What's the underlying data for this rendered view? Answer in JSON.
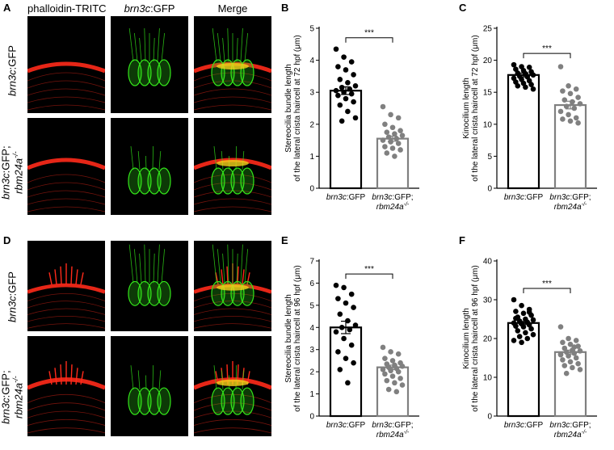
{
  "figure": {
    "columns": [
      {
        "id": "phalloidin",
        "parts": [
          {
            "t": "phalloidin-TRITC",
            "i": false
          }
        ]
      },
      {
        "id": "brn3c",
        "parts": [
          {
            "t": "brn3c",
            "i": true
          },
          {
            "t": ":GFP",
            "i": false
          }
        ]
      },
      {
        "id": "merge",
        "parts": [
          {
            "t": "Merge",
            "i": false
          }
        ]
      }
    ],
    "rows": [
      {
        "letter": "A",
        "label_lines": [
          [
            {
              "t": "brn3c",
              "i": true
            },
            {
              "t": ":GFP",
              "i": false
            }
          ]
        ]
      },
      {
        "letter": "",
        "label_lines": [
          [
            {
              "t": "brn3c",
              "i": true
            },
            {
              "t": ":GFP;",
              "i": false
            }
          ],
          [
            {
              "t": "rbm24a",
              "i": true
            },
            {
              "t": "-/-",
              "i": true,
              "sup": true
            }
          ]
        ]
      },
      {
        "letter": "D",
        "label_lines": [
          [
            {
              "t": "brn3c",
              "i": true
            },
            {
              "t": ":GFP",
              "i": false
            }
          ]
        ]
      },
      {
        "letter": "",
        "label_lines": [
          [
            {
              "t": "brn3c",
              "i": true
            },
            {
              "t": ":GFP;",
              "i": false
            }
          ],
          [
            {
              "t": "rbm24a",
              "i": true
            },
            {
              "t": "-/-",
              "i": true,
              "sup": true
            }
          ]
        ]
      }
    ],
    "colors": {
      "phalloidin": "#ff2a1a",
      "gfp": "#33e61a",
      "merge_overlap": "#f5d21a",
      "wt_bar": "#000000",
      "mutant_bar": "#808080"
    }
  },
  "chart_data": [
    {
      "panel": "B",
      "type": "bar",
      "ylabel_lines": [
        "Stereocilia bundle length",
        "of the lateral crista haircell at 72 hpf (μm)"
      ],
      "ylim": [
        0,
        5
      ],
      "yticks": [
        0,
        1,
        2,
        3,
        4,
        5
      ],
      "significance": "***",
      "categories": [
        [
          [
            {
              "t": "brn3c",
              "i": true
            },
            {
              "t": ":GFP",
              "i": false
            }
          ]
        ],
        [
          [
            {
              "t": "brn3c",
              "i": true
            },
            {
              "t": ":GFP;",
              "i": false
            }
          ],
          [
            {
              "t": "rbm24a",
              "i": true
            },
            {
              "t": "-/-",
              "i": true,
              "sup": true
            }
          ]
        ]
      ],
      "means": [
        3.05,
        1.55
      ],
      "sem": [
        0.12,
        0.08
      ],
      "points": [
        [
          4.35,
          4.1,
          3.95,
          3.8,
          3.7,
          3.55,
          3.4,
          3.3,
          3.2,
          3.15,
          3.1,
          3.05,
          3.0,
          2.95,
          2.9,
          2.8,
          2.7,
          2.6,
          2.4,
          2.2,
          2.1
        ],
        [
          2.55,
          2.3,
          2.2,
          2.0,
          1.9,
          1.8,
          1.75,
          1.7,
          1.65,
          1.6,
          1.55,
          1.5,
          1.45,
          1.4,
          1.3,
          1.25,
          1.2,
          1.1,
          1.0
        ]
      ]
    },
    {
      "panel": "C",
      "type": "bar",
      "ylabel_lines": [
        "Kinocilium length",
        "of the lateral crista haircell at 72 hpf (μm)"
      ],
      "ylim": [
        0,
        25
      ],
      "yticks": [
        0,
        5,
        10,
        15,
        20,
        25
      ],
      "significance": "***",
      "categories": [
        [
          [
            {
              "t": "brn3c",
              "i": true
            },
            {
              "t": ":GFP",
              "i": false
            }
          ]
        ],
        [
          [
            {
              "t": "brn3c",
              "i": true
            },
            {
              "t": ":GFP;",
              "i": false
            }
          ],
          [
            {
              "t": "rbm24a",
              "i": true
            },
            {
              "t": "-/-",
              "i": true,
              "sup": true
            }
          ]
        ]
      ],
      "means": [
        17.7,
        13.0
      ],
      "sem": [
        0.3,
        0.6
      ],
      "points": [
        [
          19.3,
          19.0,
          18.9,
          18.6,
          18.4,
          18.2,
          18.0,
          17.9,
          17.7,
          17.5,
          17.4,
          17.2,
          17.0,
          16.8,
          16.6,
          16.4,
          16.2,
          16.0,
          15.8,
          15.5
        ],
        [
          19.0,
          16.0,
          15.5,
          15.2,
          14.8,
          14.2,
          13.8,
          13.5,
          13.2,
          12.8,
          12.5,
          12.0,
          11.5,
          11.0,
          10.8,
          10.5,
          10.2
        ]
      ]
    },
    {
      "panel": "E",
      "type": "bar",
      "ylabel_lines": [
        "Stereocilia bundle length",
        "of the lateral crista haircell at 96 hpf (μm)"
      ],
      "ylim": [
        0,
        7
      ],
      "yticks": [
        0,
        1,
        2,
        3,
        4,
        5,
        6,
        7
      ],
      "significance": "***",
      "categories": [
        [
          [
            {
              "t": "brn3c",
              "i": true
            },
            {
              "t": ":GFP",
              "i": false
            }
          ]
        ],
        [
          [
            {
              "t": "brn3c",
              "i": true
            },
            {
              "t": ":GFP;",
              "i": false
            }
          ],
          [
            {
              "t": "rbm24a",
              "i": true
            },
            {
              "t": "-/-",
              "i": true,
              "sup": true
            }
          ]
        ]
      ],
      "means": [
        4.0,
        2.2
      ],
      "sem": [
        0.28,
        0.1
      ],
      "points": [
        [
          5.9,
          5.8,
          5.5,
          5.3,
          5.1,
          4.9,
          4.6,
          4.3,
          4.1,
          4.0,
          3.9,
          3.8,
          3.5,
          3.2,
          2.9,
          2.6,
          2.4,
          2.1,
          1.5
        ],
        [
          3.1,
          2.9,
          2.8,
          2.6,
          2.5,
          2.4,
          2.35,
          2.3,
          2.25,
          2.2,
          2.15,
          2.1,
          2.05,
          2.0,
          1.9,
          1.8,
          1.7,
          1.6,
          1.5,
          1.4,
          1.2,
          1.1
        ]
      ]
    },
    {
      "panel": "F",
      "type": "bar",
      "ylabel_lines": [
        "Kinocilium length",
        "of the lateral crista haircell at 96 hpf (μm)"
      ],
      "ylim": [
        0,
        40
      ],
      "yticks": [
        0,
        10,
        20,
        30,
        40
      ],
      "significance": "***",
      "categories": [
        [
          [
            {
              "t": "brn3c",
              "i": true
            },
            {
              "t": ":GFP",
              "i": false
            }
          ]
        ],
        [
          [
            {
              "t": "brn3c",
              "i": true
            },
            {
              "t": ":GFP;",
              "i": false
            }
          ],
          [
            {
              "t": "rbm24a",
              "i": true
            },
            {
              "t": "-/-",
              "i": true,
              "sup": true
            }
          ]
        ]
      ],
      "means": [
        24.0,
        16.5
      ],
      "sem": [
        0.4,
        0.5
      ],
      "points": [
        [
          30.0,
          28.5,
          27.5,
          27.0,
          26.5,
          26.0,
          25.5,
          25.0,
          24.8,
          24.5,
          24.2,
          24.0,
          23.8,
          23.5,
          23.2,
          23.0,
          22.5,
          22.0,
          21.5,
          21.0,
          20.5,
          20.0,
          19.5,
          19.0,
          26.8,
          25.2
        ],
        [
          23.0,
          20.0,
          19.5,
          19.0,
          18.5,
          18.0,
          17.5,
          17.0,
          16.8,
          16.5,
          16.2,
          16.0,
          15.5,
          15.0,
          14.5,
          14.0,
          13.5,
          13.0,
          12.5,
          12.0,
          11.0,
          17.8,
          15.8
        ]
      ]
    }
  ]
}
